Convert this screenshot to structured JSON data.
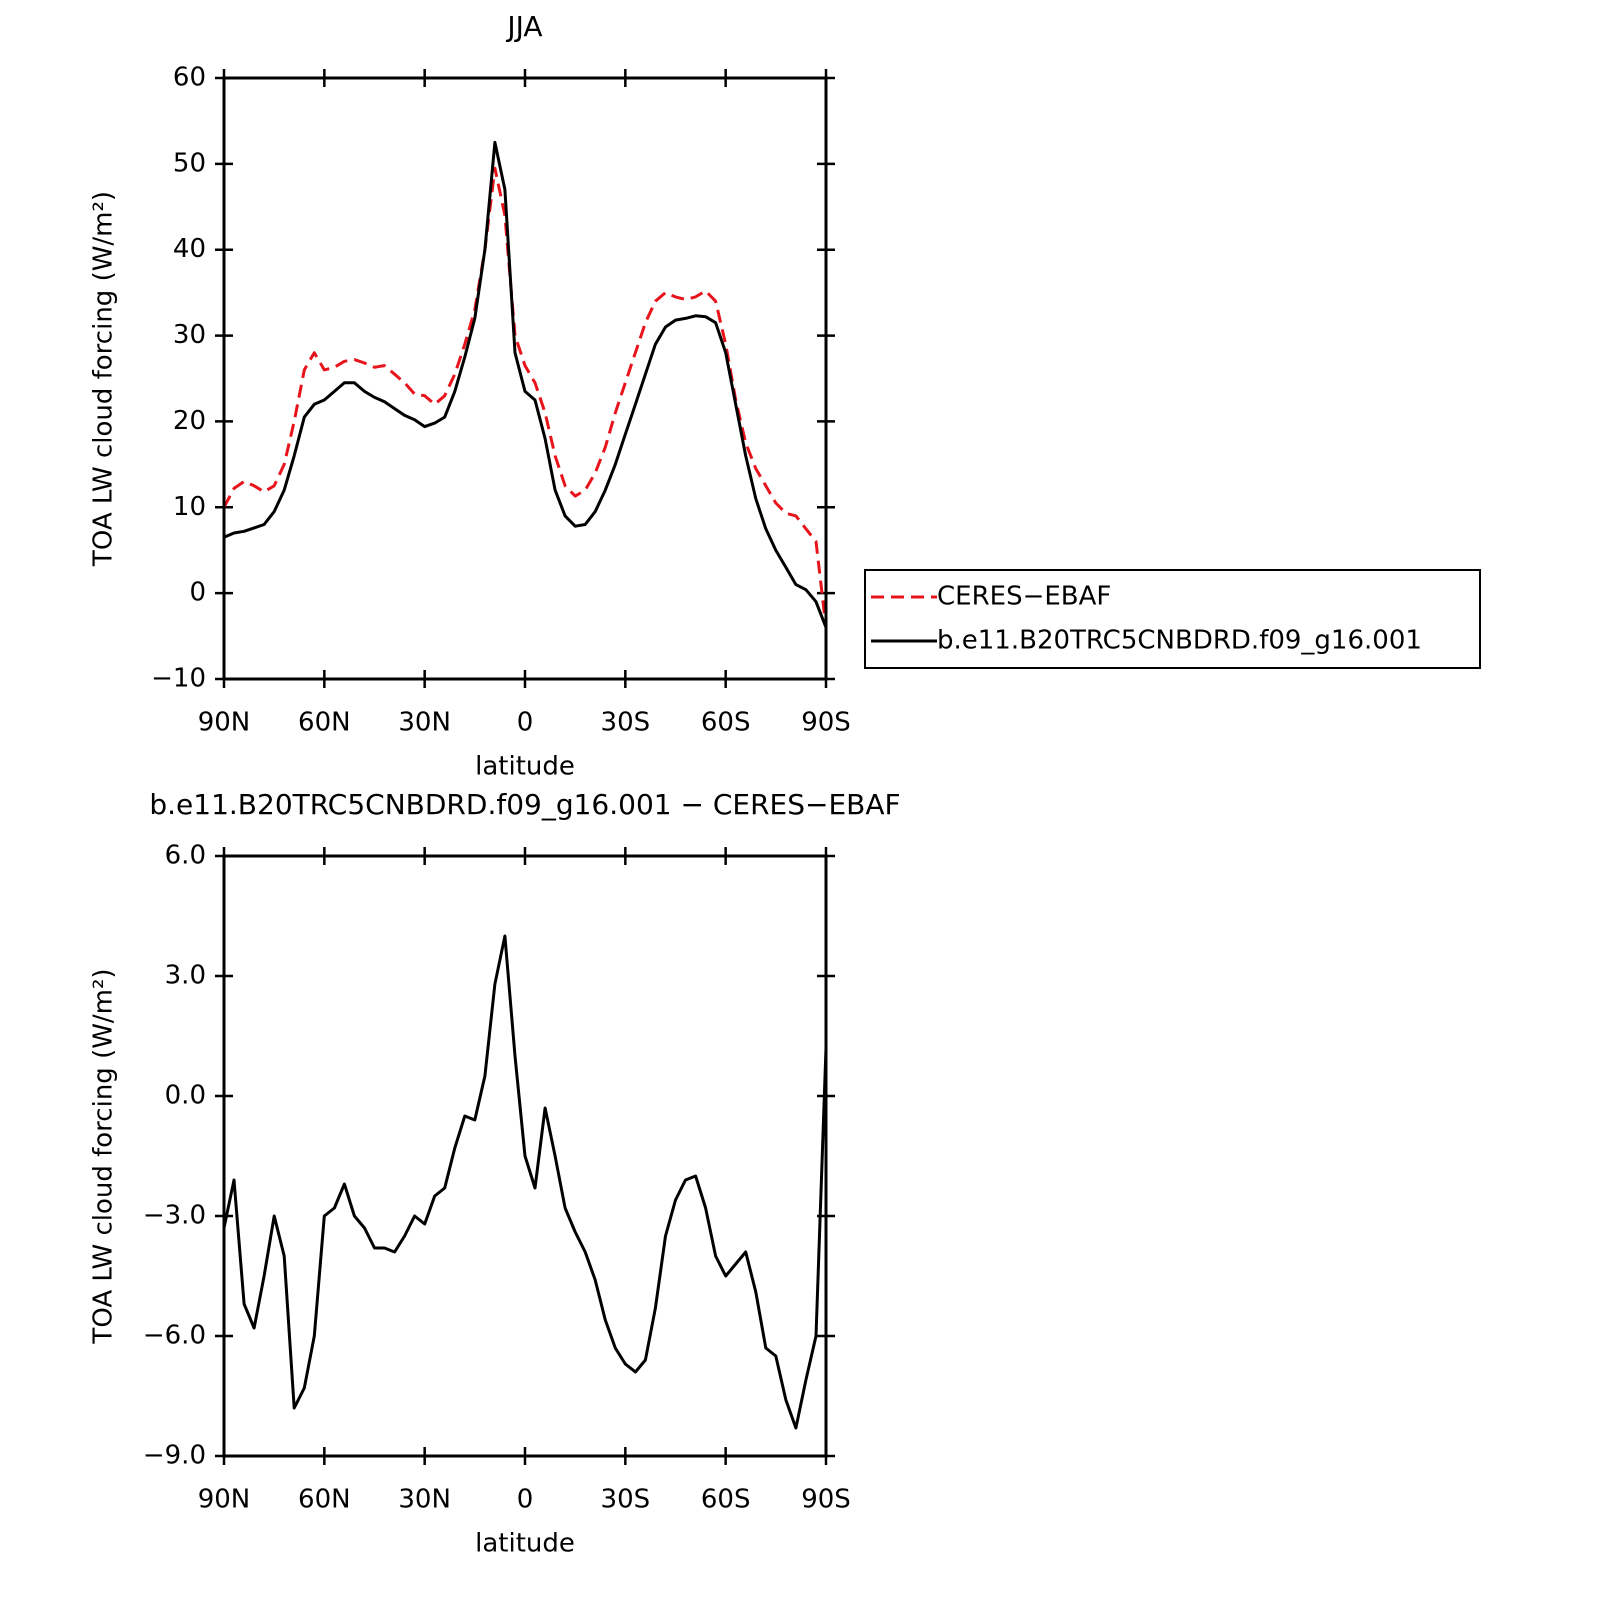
{
  "chart_data": [
    {
      "type": "line",
      "title": "JJA",
      "xlabel": "latitude",
      "ylabel": "TOA LW cloud forcing (W/m²)",
      "x": [
        90,
        87,
        84,
        81,
        78,
        75,
        72,
        69,
        66,
        63,
        60,
        57,
        54,
        51,
        48,
        45,
        42,
        39,
        36,
        33,
        30,
        27,
        24,
        21,
        18,
        15,
        12,
        9,
        6,
        3,
        0,
        -3,
        -6,
        -9,
        -12,
        -15,
        -18,
        -21,
        -24,
        -27,
        -30,
        -33,
        -36,
        -39,
        -42,
        -45,
        -48,
        -51,
        -54,
        -57,
        -60,
        -63,
        -66,
        -69,
        -72,
        -75,
        -78,
        -81,
        -84,
        -87,
        -90
      ],
      "xlim": [
        90,
        -90
      ],
      "xticks": [
        {
          "value": 90,
          "label": "90N"
        },
        {
          "value": 60,
          "label": "60N"
        },
        {
          "value": 30,
          "label": "30N"
        },
        0,
        {
          "value": -30,
          "label": "30S"
        },
        {
          "value": -60,
          "label": "60S"
        },
        {
          "value": -90,
          "label": "90S"
        }
      ],
      "ylim": [
        -10,
        60
      ],
      "yticks": [
        {
          "value": -10,
          "label": "−10"
        },
        0,
        10,
        20,
        30,
        40,
        50,
        60
      ],
      "legend": "outside-right",
      "series": [
        {
          "name": "CERES−EBAF",
          "color": "#e8141c",
          "dash": true,
          "values": [
            10,
            12.2,
            13,
            12.5,
            11.8,
            12.5,
            15,
            20,
            26,
            28,
            26,
            26.3,
            27,
            27.2,
            26.8,
            26.3,
            26.5,
            25.5,
            24.5,
            23.2,
            23,
            22,
            23,
            25.5,
            29,
            33,
            40,
            49.5,
            44,
            30,
            26.5,
            24.5,
            21,
            16,
            12.5,
            11.3,
            12,
            14,
            17,
            21,
            24.5,
            28,
            31.5,
            34,
            35,
            34.5,
            34.2,
            34.5,
            35.2,
            34,
            29,
            22.5,
            17.5,
            14.5,
            12.5,
            10.5,
            9.3,
            9,
            7.5,
            6,
            -4
          ]
        },
        {
          "name": "b.e11.B20TRC5CNBDRD.f09_g16.001",
          "color": "#000000",
          "dash": false,
          "values": [
            6.5,
            7,
            7.2,
            7.6,
            8,
            9.5,
            12,
            16,
            20.5,
            22,
            22.5,
            23.5,
            24.5,
            24.5,
            23.5,
            22.8,
            22.3,
            21.5,
            20.7,
            20.2,
            19.4,
            19.8,
            20.5,
            23.5,
            27.5,
            32,
            40,
            52.5,
            47,
            28,
            23.5,
            22.5,
            18,
            12,
            9,
            7.8,
            8,
            9.5,
            12,
            15,
            18.5,
            22,
            25.5,
            29,
            31,
            31.8,
            32,
            32.3,
            32.2,
            31.5,
            28,
            22,
            16,
            11,
            7.5,
            5,
            3,
            1,
            0.4,
            -1,
            -4
          ]
        }
      ]
    },
    {
      "type": "line",
      "title": "b.e11.B20TRC5CNBDRD.f09_g16.001 − CERES−EBAF",
      "xlabel": "latitude",
      "ylabel": "TOA LW cloud forcing (W/m²)",
      "x": [
        90,
        87,
        84,
        81,
        78,
        75,
        72,
        69,
        66,
        63,
        60,
        57,
        54,
        51,
        48,
        45,
        42,
        39,
        36,
        33,
        30,
        27,
        24,
        21,
        18,
        15,
        12,
        9,
        6,
        3,
        0,
        -3,
        -6,
        -9,
        -12,
        -15,
        -18,
        -21,
        -24,
        -27,
        -30,
        -33,
        -36,
        -39,
        -42,
        -45,
        -48,
        -51,
        -54,
        -57,
        -60,
        -63,
        -66,
        -69,
        -72,
        -75,
        -78,
        -81,
        -84,
        -87,
        -90
      ],
      "xlim": [
        90,
        -90
      ],
      "xticks": [
        {
          "value": 90,
          "label": "90N"
        },
        {
          "value": 60,
          "label": "60N"
        },
        {
          "value": 30,
          "label": "30N"
        },
        0,
        {
          "value": -30,
          "label": "30S"
        },
        {
          "value": -60,
          "label": "60S"
        },
        {
          "value": -90,
          "label": "90S"
        }
      ],
      "ylim": [
        -9,
        6
      ],
      "yticks": [
        {
          "value": -9,
          "label": "−9.0"
        },
        {
          "value": -6,
          "label": "−6.0"
        },
        {
          "value": -3,
          "label": "−3.0"
        },
        {
          "value": 0,
          "label": "0.0"
        },
        {
          "value": 3,
          "label": "3.0"
        },
        {
          "value": 6,
          "label": "6.0"
        }
      ],
      "color": "#000000",
      "values": [
        -3.3,
        -2.1,
        -5.2,
        -5.8,
        -4.5,
        -3.0,
        -4.0,
        -7.8,
        -7.3,
        -6.0,
        -3.0,
        -2.8,
        -2.2,
        -3.0,
        -3.3,
        -3.8,
        -3.8,
        -3.9,
        -3.5,
        -3.0,
        -3.2,
        -2.5,
        -2.3,
        -1.3,
        -0.5,
        -0.6,
        0.5,
        2.8,
        4.0,
        1.0,
        -1.5,
        -2.3,
        -0.3,
        -1.5,
        -2.8,
        -3.4,
        -3.9,
        -4.6,
        -5.6,
        -6.3,
        -6.7,
        -6.9,
        -6.6,
        -5.3,
        -3.5,
        -2.6,
        -2.1,
        -2.0,
        -2.8,
        -4.0,
        -4.5,
        -4.2,
        -3.9,
        -4.9,
        -6.3,
        -6.5,
        -7.6,
        -8.3,
        -7.1,
        -6.0,
        1.2
      ]
    }
  ]
}
